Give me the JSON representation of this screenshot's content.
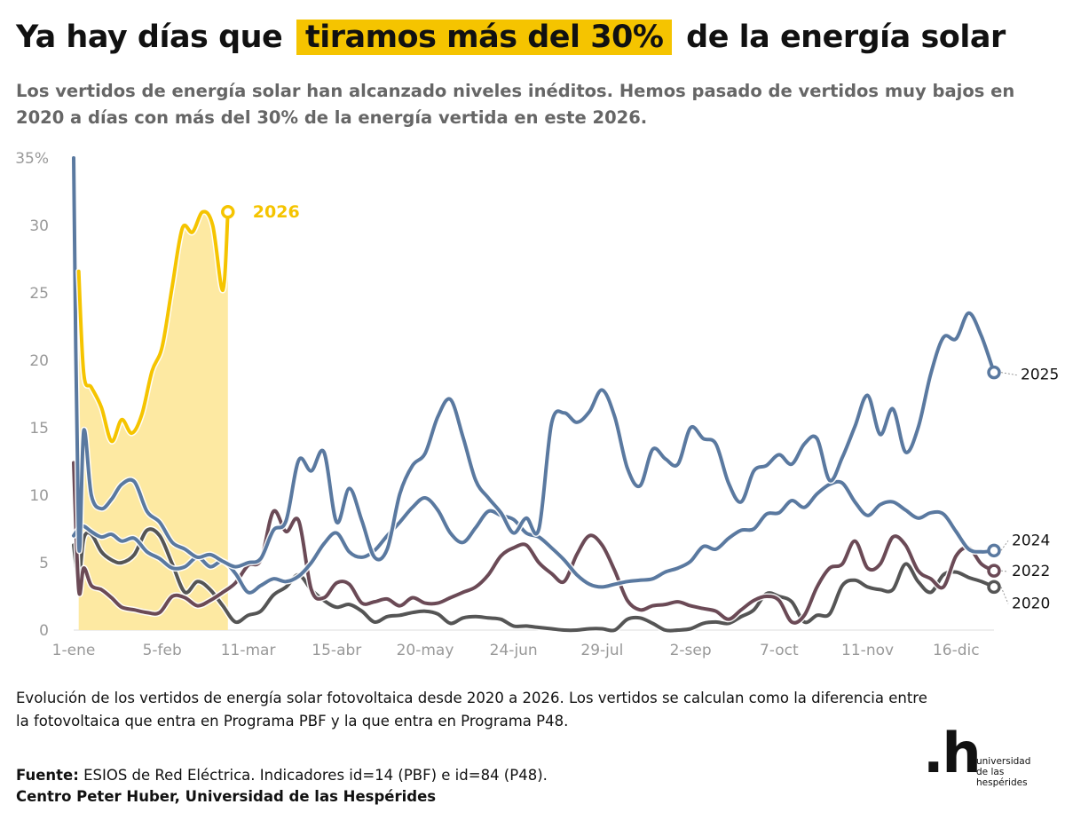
{
  "header": {
    "title_before": "Ya hay días que",
    "title_highlight": "tiramos más del 30%",
    "title_after": "de la energía solar",
    "subtitle": "Los vertidos de energía solar han alcanzado niveles inéditos. Hemos pasado de vertidos muy bajos en 2020 a días con más del 30% de la energía vertida en este 2026."
  },
  "footer": {
    "description": "Evolución de los vertidos de energía solar fotovoltaica desde 2020 a 2026. Los vertidos se calculan como la diferencia entre la fotovoltaica que entra en Programa PBF y la que entra en Programa P48.",
    "source_label": "Fuente:",
    "source_text": "ESIOS de Red Eléctrica. Indicadores id=14 (PBF) e id=84 (P48).",
    "credit": "Centro Peter Huber, Universidad de las Hespérides"
  },
  "logo": {
    "mark": ".h",
    "line1": "universidad",
    "line2": "de las",
    "line3": "hespérides"
  },
  "chart_data": {
    "type": "line",
    "title": "Ya hay días que tiramos más del 30% de la energía solar",
    "xlabel": "",
    "ylabel": "",
    "x_unit": "day of year",
    "xlim": [
      1,
      365
    ],
    "ylim": [
      0,
      35
    ],
    "grid": false,
    "y_ticks": [
      {
        "value": 0,
        "label": "0"
      },
      {
        "value": 5,
        "label": "5"
      },
      {
        "value": 10,
        "label": "10"
      },
      {
        "value": 15,
        "label": "15"
      },
      {
        "value": 20,
        "label": "20"
      },
      {
        "value": 25,
        "label": "25"
      },
      {
        "value": 30,
        "label": "30"
      },
      {
        "value": 35,
        "label": "35%"
      }
    ],
    "x_ticks": [
      {
        "value": 1,
        "label": "1-ene"
      },
      {
        "value": 36,
        "label": "5-feb"
      },
      {
        "value": 70,
        "label": "11-mar"
      },
      {
        "value": 105,
        "label": "15-abr"
      },
      {
        "value": 140,
        "label": "20-may"
      },
      {
        "value": 175,
        "label": "24-jun"
      },
      {
        "value": 210,
        "label": "29-jul"
      },
      {
        "value": 245,
        "label": "2-sep"
      },
      {
        "value": 280,
        "label": "7-oct"
      },
      {
        "value": 315,
        "label": "11-nov"
      },
      {
        "value": 350,
        "label": "16-dic"
      }
    ],
    "series": [
      {
        "name": "2020",
        "color": "#555555",
        "x": [
          1,
          3,
          5,
          8,
          12,
          16,
          20,
          25,
          30,
          35,
          40,
          45,
          50,
          55,
          60,
          65,
          70,
          75,
          80,
          85,
          90,
          95,
          100,
          105,
          110,
          115,
          120,
          125,
          130,
          135,
          140,
          145,
          150,
          155,
          160,
          165,
          170,
          175,
          180,
          185,
          190,
          195,
          200,
          205,
          210,
          215,
          220,
          225,
          230,
          235,
          240,
          245,
          250,
          255,
          260,
          265,
          270,
          275,
          280,
          285,
          290,
          295,
          300,
          305,
          310,
          315,
          320,
          325,
          330,
          335,
          340,
          345,
          350,
          355,
          360,
          365
        ],
        "y": [
          6.3,
          3.8,
          6.8,
          7.1,
          5.8,
          5.2,
          5.0,
          5.6,
          7.4,
          7.0,
          4.9,
          2.8,
          3.6,
          3.0,
          1.8,
          0.6,
          1.1,
          1.4,
          2.6,
          3.2,
          4.1,
          3.0,
          2.2,
          1.7,
          1.9,
          1.4,
          0.6,
          1.0,
          1.1,
          1.3,
          1.4,
          1.2,
          0.5,
          0.9,
          1.0,
          0.9,
          0.8,
          0.3,
          0.3,
          0.2,
          0.1,
          0.0,
          0.0,
          0.1,
          0.1,
          0.0,
          0.8,
          0.9,
          0.5,
          0.0,
          0.0,
          0.1,
          0.5,
          0.6,
          0.5,
          1.0,
          1.5,
          2.7,
          2.5,
          2.1,
          0.6,
          1.1,
          1.2,
          3.3,
          3.7,
          3.2,
          3.0,
          3.0,
          4.9,
          3.6,
          2.8,
          4.1,
          4.3,
          3.9,
          3.6,
          3.2
        ]
      },
      {
        "name": "2022",
        "color": "#6b4a56",
        "x": [
          1,
          3,
          5,
          8,
          12,
          16,
          20,
          25,
          30,
          35,
          40,
          45,
          50,
          55,
          60,
          65,
          70,
          75,
          80,
          85,
          90,
          95,
          100,
          105,
          110,
          115,
          120,
          125,
          130,
          135,
          140,
          145,
          150,
          155,
          160,
          165,
          170,
          175,
          180,
          185,
          190,
          195,
          200,
          205,
          210,
          215,
          220,
          225,
          230,
          235,
          240,
          245,
          250,
          255,
          260,
          265,
          270,
          275,
          280,
          285,
          290,
          295,
          300,
          305,
          310,
          315,
          320,
          325,
          330,
          335,
          340,
          345,
          350,
          355,
          360,
          365
        ],
        "y": [
          12.4,
          3.0,
          4.6,
          3.3,
          3.0,
          2.4,
          1.7,
          1.5,
          1.3,
          1.3,
          2.5,
          2.4,
          1.8,
          2.2,
          2.8,
          3.5,
          4.8,
          5.2,
          8.8,
          7.3,
          8.1,
          3.0,
          2.4,
          3.5,
          3.4,
          2.0,
          2.1,
          2.3,
          1.8,
          2.4,
          2.0,
          2.0,
          2.4,
          2.8,
          3.2,
          4.1,
          5.5,
          6.1,
          6.3,
          5.0,
          4.2,
          3.6,
          5.6,
          7.0,
          6.3,
          4.4,
          2.2,
          1.5,
          1.8,
          1.9,
          2.1,
          1.8,
          1.6,
          1.4,
          0.8,
          1.5,
          2.2,
          2.5,
          2.2,
          0.6,
          1.1,
          3.2,
          4.6,
          4.9,
          6.6,
          4.6,
          4.9,
          6.9,
          6.3,
          4.4,
          3.8,
          3.2,
          5.5,
          6.1,
          4.9,
          4.4
        ]
      },
      {
        "name": "2024",
        "color": "#5a79a0",
        "x": [
          1,
          3,
          5,
          8,
          12,
          16,
          20,
          25,
          30,
          35,
          40,
          45,
          50,
          55,
          60,
          65,
          70,
          75,
          80,
          85,
          90,
          95,
          100,
          105,
          110,
          115,
          120,
          125,
          130,
          135,
          140,
          145,
          150,
          155,
          160,
          165,
          170,
          175,
          180,
          185,
          190,
          195,
          200,
          205,
          210,
          215,
          220,
          225,
          230,
          235,
          240,
          245,
          250,
          255,
          260,
          265,
          270,
          275,
          280,
          285,
          290,
          295,
          300,
          305,
          310,
          315,
          320,
          325,
          330,
          335,
          340,
          345,
          350,
          355,
          360,
          365
        ],
        "y": [
          7.0,
          7.5,
          7.7,
          7.3,
          6.9,
          7.1,
          6.6,
          6.8,
          5.8,
          5.3,
          4.6,
          4.7,
          5.4,
          4.7,
          5.1,
          4.2,
          2.8,
          3.3,
          3.8,
          3.6,
          4.0,
          5.0,
          6.4,
          7.2,
          5.8,
          5.4,
          5.9,
          7.0,
          8.0,
          9.1,
          9.8,
          8.9,
          7.2,
          6.5,
          7.6,
          8.8,
          8.5,
          8.2,
          7.2,
          6.9,
          6.1,
          5.2,
          4.1,
          3.4,
          3.2,
          3.4,
          3.6,
          3.7,
          3.8,
          4.3,
          4.6,
          5.1,
          6.2,
          6.0,
          6.8,
          7.4,
          7.5,
          8.6,
          8.7,
          9.6,
          9.1,
          10.1,
          10.8,
          10.9,
          9.5,
          8.5,
          9.3,
          9.5,
          8.9,
          8.3,
          8.7,
          8.6,
          7.3,
          6.0,
          5.8,
          5.9
        ]
      },
      {
        "name": "2025",
        "color": "#5a79a0",
        "x": [
          1,
          3,
          5,
          8,
          12,
          16,
          20,
          25,
          30,
          35,
          40,
          45,
          50,
          55,
          60,
          65,
          70,
          75,
          80,
          85,
          90,
          95,
          100,
          105,
          110,
          115,
          120,
          125,
          130,
          135,
          140,
          145,
          150,
          155,
          160,
          165,
          170,
          175,
          180,
          185,
          190,
          195,
          200,
          205,
          210,
          215,
          220,
          225,
          230,
          235,
          240,
          245,
          250,
          255,
          260,
          265,
          270,
          275,
          280,
          285,
          290,
          295,
          300,
          305,
          310,
          315,
          320,
          325,
          330,
          335,
          340,
          345,
          350,
          355,
          360,
          365
        ],
        "y": [
          35,
          6.5,
          14.8,
          10.0,
          9.0,
          9.7,
          10.8,
          11.0,
          8.8,
          8.0,
          6.5,
          6.0,
          5.4,
          5.6,
          5.1,
          4.7,
          5.0,
          5.3,
          7.4,
          8.1,
          12.6,
          11.8,
          13.2,
          8.0,
          10.5,
          8.1,
          5.4,
          6.0,
          10.1,
          12.2,
          13.1,
          15.8,
          17.1,
          14.3,
          11.1,
          9.8,
          8.7,
          7.2,
          8.3,
          7.5,
          15.3,
          16.1,
          15.4,
          16.2,
          17.8,
          15.8,
          12.0,
          10.7,
          13.4,
          12.7,
          12.3,
          15.0,
          14.2,
          13.8,
          10.9,
          9.5,
          11.8,
          12.2,
          13.0,
          12.3,
          13.8,
          14.2,
          11.1,
          12.8,
          15.1,
          17.4,
          14.5,
          16.4,
          13.2,
          15.0,
          19.0,
          21.7,
          21.6,
          23.5,
          21.8,
          19.1
        ]
      },
      {
        "name": "2026",
        "color": "#f5c400",
        "x": [
          3,
          5,
          8,
          12,
          16,
          20,
          24,
          28,
          32,
          36,
          40,
          44,
          48,
          52,
          56,
          60,
          62
        ],
        "y": [
          26.6,
          19.0,
          18.0,
          16.5,
          14.0,
          15.6,
          14.6,
          16.0,
          19.2,
          21.0,
          25.5,
          29.8,
          29.5,
          31.0,
          30.0,
          25.2,
          31.0
        ],
        "fill": true
      }
    ],
    "end_labels": [
      {
        "series": "2026",
        "text": "2026"
      },
      {
        "series": "2025",
        "text": "2025"
      },
      {
        "series": "2024",
        "text": "2024"
      },
      {
        "series": "2022",
        "text": "2022"
      },
      {
        "series": "2020",
        "text": "2020"
      }
    ]
  }
}
